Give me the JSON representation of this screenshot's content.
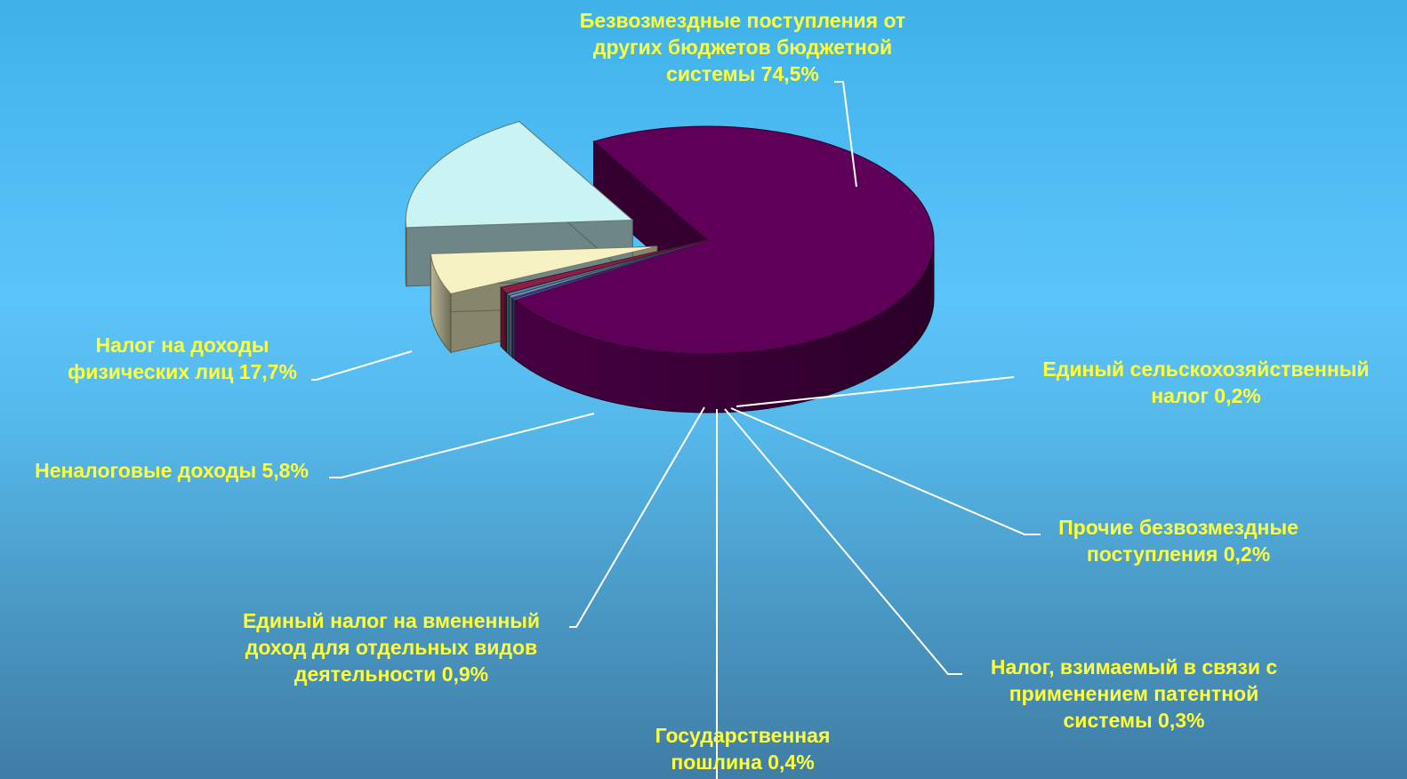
{
  "chart_data": {
    "type": "pie",
    "variant": "3d-exploded",
    "title": "",
    "legend": "none",
    "slices": [
      {
        "label": "Безвозмездные поступления от\nдругих бюджетов бюджетной\nсистемы  74,5%",
        "value": 74.5,
        "color": "#5e0058"
      },
      {
        "label": "Единый сельскохозяйственный\nналог 0,2%",
        "value": 0.2,
        "color": "#6b6fb0"
      },
      {
        "label": "Прочие безвозмездные\nпоступления 0,2%",
        "value": 0.2,
        "color": "#2e4fa6"
      },
      {
        "label": "Налог, взимаемый в связи с\nприменением патентной\nсистемы 0,3%",
        "value": 0.3,
        "color": "#9a8fcf"
      },
      {
        "label": "Государственная\nпошлина 0,4%",
        "value": 0.4,
        "color": "#4a8a9a"
      },
      {
        "label": "Единый налог на вмененный\nдоход для отдельных видов\nдеятельности 0,9%",
        "value": 0.9,
        "color": "#8a2048"
      },
      {
        "label": "Неналоговые доходы 5,8%",
        "value": 5.8,
        "color": "#f6f2c4"
      },
      {
        "label": "Налог на доходы\nфизических лиц 17,7%",
        "value": 17.7,
        "color": "#caf3f4"
      }
    ]
  }
}
